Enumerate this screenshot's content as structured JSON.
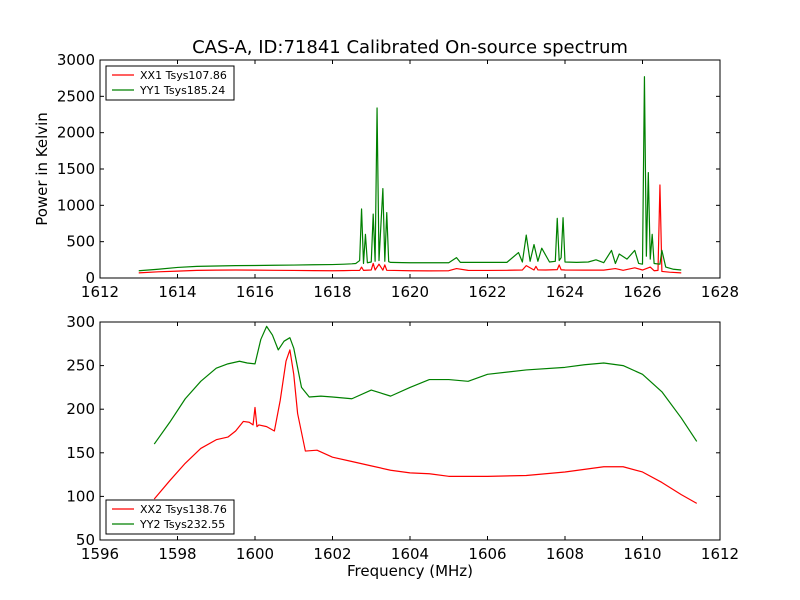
{
  "title": "CAS-A, ID:71841 Calibrated On-source spectrum",
  "chart_data": [
    {
      "type": "line",
      "ylabel": "Power in Kelvin",
      "xlabel": "",
      "xlim": [
        1612,
        1628
      ],
      "ylim": [
        0,
        3000
      ],
      "xticks": [
        1612,
        1614,
        1616,
        1618,
        1620,
        1622,
        1624,
        1626,
        1628
      ],
      "yticks": [
        0,
        500,
        1000,
        1500,
        2000,
        2500,
        3000
      ],
      "legend_position": "upper-left",
      "series": [
        {
          "name": "XX1 Tsys107.86",
          "color": "#ff0000",
          "x": [
            1613.0,
            1613.5,
            1614.0,
            1614.5,
            1615.0,
            1615.5,
            1616.0,
            1616.5,
            1617.0,
            1617.5,
            1618.0,
            1618.3,
            1618.5,
            1618.7,
            1618.75,
            1618.8,
            1619.0,
            1619.05,
            1619.1,
            1619.2,
            1619.3,
            1619.35,
            1619.4,
            1619.6,
            1620.0,
            1620.5,
            1621.0,
            1621.2,
            1621.5,
            1622.0,
            1622.5,
            1622.9,
            1623.0,
            1623.2,
            1623.25,
            1623.3,
            1623.5,
            1623.8,
            1623.85,
            1623.9,
            1624.0,
            1624.5,
            1625.0,
            1625.3,
            1625.5,
            1625.8,
            1626.0,
            1626.2,
            1626.3,
            1626.4,
            1626.45,
            1626.5,
            1626.7,
            1627.0
          ],
          "values": [
            70,
            85,
            95,
            105,
            108,
            110,
            108,
            106,
            104,
            102,
            100,
            102,
            104,
            105,
            150,
            105,
            110,
            200,
            110,
            190,
            108,
            180,
            106,
            104,
            100,
            98,
            100,
            130,
            105,
            104,
            106,
            110,
            170,
            110,
            160,
            112,
            110,
            115,
            180,
            114,
            110,
            108,
            108,
            130,
            106,
            140,
            110,
            150,
            100,
            105,
            1280,
            90,
            80,
            70
          ]
        },
        {
          "name": "YY1 Tsys185.24",
          "color": "#008000",
          "x": [
            1613.0,
            1613.5,
            1614.0,
            1614.5,
            1615.0,
            1615.5,
            1616.0,
            1616.5,
            1617.0,
            1617.5,
            1618.0,
            1618.3,
            1618.5,
            1618.6,
            1618.7,
            1618.75,
            1618.8,
            1618.85,
            1618.9,
            1619.0,
            1619.05,
            1619.1,
            1619.15,
            1619.2,
            1619.3,
            1619.35,
            1619.4,
            1619.45,
            1619.5,
            1619.8,
            1620.0,
            1620.5,
            1621.0,
            1621.2,
            1621.3,
            1621.5,
            1622.0,
            1622.5,
            1622.8,
            1622.9,
            1623.0,
            1623.1,
            1623.2,
            1623.3,
            1623.4,
            1623.6,
            1623.75,
            1623.8,
            1623.85,
            1623.9,
            1623.95,
            1624.0,
            1624.3,
            1624.6,
            1624.8,
            1625.0,
            1625.2,
            1625.3,
            1625.4,
            1625.6,
            1625.8,
            1625.9,
            1626.0,
            1626.05,
            1626.1,
            1626.15,
            1626.2,
            1626.25,
            1626.3,
            1626.45,
            1626.5,
            1626.6,
            1626.8,
            1627.0
          ],
          "values": [
            100,
            120,
            145,
            160,
            165,
            170,
            172,
            175,
            178,
            182,
            185,
            190,
            195,
            200,
            240,
            950,
            200,
            600,
            210,
            220,
            880,
            230,
            2340,
            240,
            1230,
            230,
            900,
            225,
            215,
            212,
            210,
            210,
            210,
            280,
            215,
            215,
            215,
            215,
            350,
            220,
            590,
            230,
            460,
            230,
            410,
            220,
            230,
            820,
            240,
            280,
            830,
            220,
            215,
            220,
            250,
            210,
            380,
            200,
            330,
            260,
            380,
            200,
            190,
            2770,
            300,
            1450,
            260,
            600,
            200,
            190,
            380,
            150,
            120,
            110
          ]
        }
      ]
    },
    {
      "type": "line",
      "xlabel": "Frequency (MHz)",
      "ylabel": "",
      "xlim": [
        1596,
        1612
      ],
      "ylim": [
        50,
        300
      ],
      "xticks": [
        1596,
        1598,
        1600,
        1602,
        1604,
        1606,
        1608,
        1610,
        1612
      ],
      "yticks": [
        50,
        100,
        150,
        200,
        250,
        300
      ],
      "legend_position": "lower-left",
      "series": [
        {
          "name": "XX2 Tsys138.76",
          "color": "#ff0000",
          "x": [
            1597.4,
            1597.8,
            1598.2,
            1598.6,
            1599.0,
            1599.3,
            1599.5,
            1599.7,
            1599.85,
            1599.95,
            1600.0,
            1600.05,
            1600.1,
            1600.3,
            1600.5,
            1600.65,
            1600.8,
            1600.9,
            1601.0,
            1601.1,
            1601.3,
            1601.6,
            1602.0,
            1602.5,
            1603.0,
            1603.5,
            1604.0,
            1604.5,
            1605.0,
            1606.0,
            1607.0,
            1608.0,
            1608.5,
            1609.0,
            1609.5,
            1610.0,
            1610.5,
            1611.0,
            1611.4
          ],
          "values": [
            97,
            118,
            138,
            155,
            165,
            168,
            175,
            186,
            185,
            182,
            202,
            180,
            182,
            180,
            175,
            210,
            255,
            268,
            240,
            195,
            152,
            153,
            145,
            140,
            135,
            130,
            127,
            126,
            123,
            123,
            124,
            128,
            131,
            134,
            134,
            128,
            116,
            102,
            92
          ]
        },
        {
          "name": "YY2 Tsys232.55",
          "color": "#008000",
          "x": [
            1597.4,
            1597.8,
            1598.2,
            1598.6,
            1599.0,
            1599.3,
            1599.6,
            1599.8,
            1600.0,
            1600.15,
            1600.3,
            1600.45,
            1600.6,
            1600.75,
            1600.9,
            1601.0,
            1601.2,
            1601.4,
            1601.7,
            1602.0,
            1602.5,
            1603.0,
            1603.5,
            1604.0,
            1604.5,
            1605.0,
            1605.5,
            1606.0,
            1607.0,
            1608.0,
            1608.5,
            1609.0,
            1609.5,
            1610.0,
            1610.5,
            1611.0,
            1611.4
          ],
          "values": [
            160,
            185,
            212,
            232,
            247,
            252,
            255,
            253,
            252,
            280,
            295,
            285,
            268,
            278,
            282,
            270,
            225,
            214,
            215,
            214,
            212,
            222,
            215,
            225,
            234,
            234,
            232,
            240,
            245,
            248,
            251,
            253,
            250,
            240,
            220,
            190,
            163
          ]
        }
      ]
    }
  ]
}
